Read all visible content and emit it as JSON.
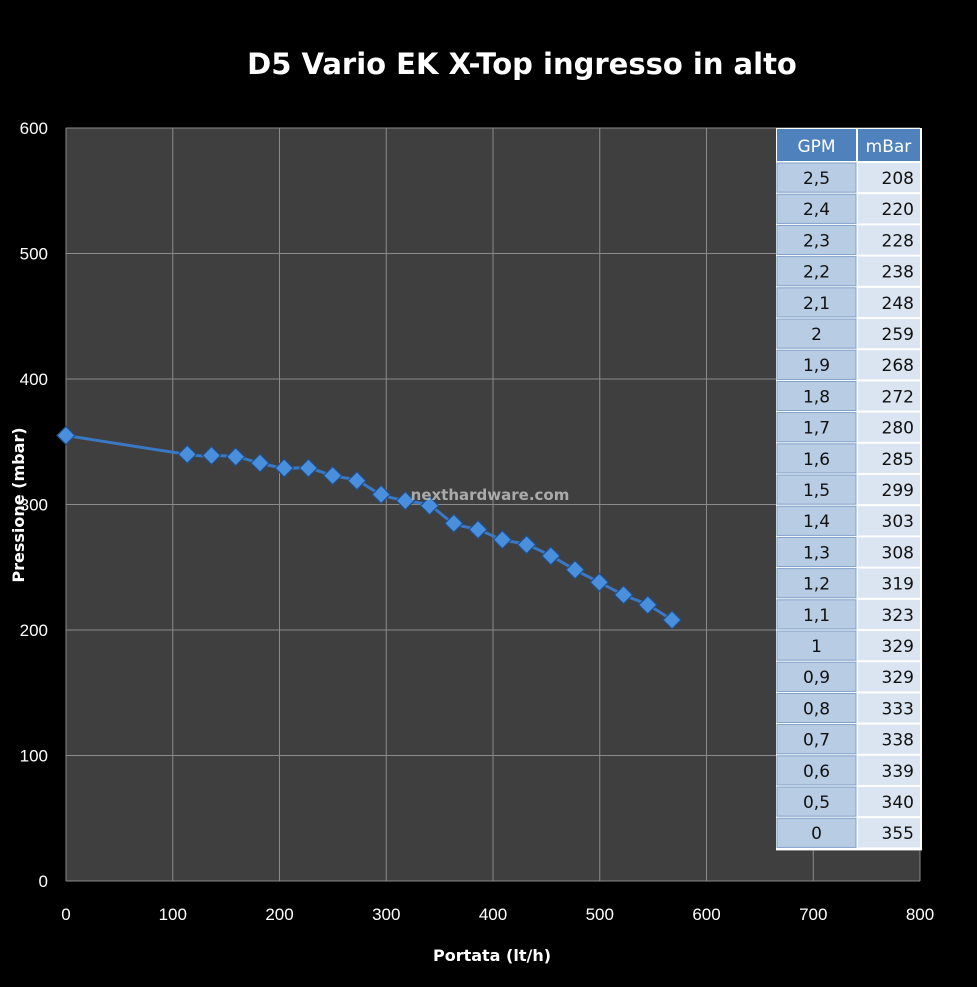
{
  "chart_data": {
    "type": "scatter",
    "title": "D5 Vario EK X-Top ingresso in alto",
    "xlabel": "Portata (lt/h)",
    "ylabel": "Pressione (mbar)",
    "xlim": [
      0,
      800
    ],
    "ylim": [
      0,
      600
    ],
    "x_ticks": [
      "0",
      "100",
      "200",
      "300",
      "400",
      "500",
      "600",
      "700",
      "800"
    ],
    "y_ticks": [
      "0",
      "100",
      "200",
      "300",
      "400",
      "500",
      "600"
    ],
    "grid": true,
    "marker": "diamond",
    "line": "smooth",
    "color": "#3a78c4",
    "series": [
      {
        "x": [
          0,
          113.6,
          136.3,
          159.0,
          181.7,
          204.4,
          227.1,
          249.8,
          272.5,
          295.2,
          317.9,
          340.6,
          363.3,
          386.0,
          408.8,
          431.5,
          454.2,
          476.9,
          499.6,
          522.3,
          545.0,
          567.7
        ],
        "y": [
          355,
          340,
          339,
          338,
          333,
          329,
          329,
          323,
          319,
          308,
          303,
          299,
          285,
          280,
          272,
          268,
          259,
          248,
          238,
          228,
          220,
          208
        ]
      }
    ],
    "table": {
      "headers": [
        "GPM",
        "mBar"
      ],
      "rows": [
        [
          "2,5",
          "208"
        ],
        [
          "2,4",
          "220"
        ],
        [
          "2,3",
          "228"
        ],
        [
          "2,2",
          "238"
        ],
        [
          "2,1",
          "248"
        ],
        [
          "2",
          "259"
        ],
        [
          "1,9",
          "268"
        ],
        [
          "1,8",
          "272"
        ],
        [
          "1,7",
          "280"
        ],
        [
          "1,6",
          "285"
        ],
        [
          "1,5",
          "299"
        ],
        [
          "1,4",
          "303"
        ],
        [
          "1,3",
          "308"
        ],
        [
          "1,2",
          "319"
        ],
        [
          "1,1",
          "323"
        ],
        [
          "1",
          "329"
        ],
        [
          "0,9",
          "329"
        ],
        [
          "0,8",
          "333"
        ],
        [
          "0,7",
          "338"
        ],
        [
          "0,6",
          "339"
        ],
        [
          "0,5",
          "340"
        ],
        [
          "0",
          "355"
        ]
      ]
    }
  },
  "watermark": "nexthardware.com",
  "colors": {
    "background": "#000000",
    "plot_area": "#3f3f3f",
    "gridline": "#8a8a8a",
    "series": "#3a78c4",
    "table_header": "#4f81bd",
    "table_gpm_cell": "#b8cce4",
    "table_mbar_cell": "#dbe5f1"
  }
}
